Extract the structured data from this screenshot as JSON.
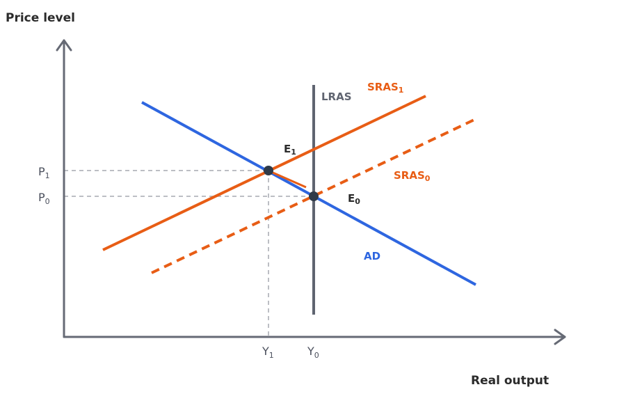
{
  "diagram": {
    "y_axis_title": "Price level",
    "x_axis_title": "Real output",
    "ticks": {
      "p1": {
        "base": "P",
        "sub": "1"
      },
      "p0": {
        "base": "P",
        "sub": "0"
      },
      "y1": {
        "base": "Y",
        "sub": "1"
      },
      "y0": {
        "base": "Y",
        "sub": "0"
      }
    },
    "curves": {
      "lras": "LRAS",
      "sras1": {
        "base": "SRAS",
        "sub": "1"
      },
      "sras0": {
        "base": "SRAS",
        "sub": "0"
      },
      "ad": "AD"
    },
    "points": {
      "e1": {
        "base": "E",
        "sub": "1"
      },
      "e0": {
        "base": "E",
        "sub": "0"
      }
    },
    "colors": {
      "axis": "#666a75",
      "orange": "#e85d15",
      "blue": "#2e66e0",
      "lras": "#5f6470",
      "guide": "#a6a9b0",
      "point": "#2f3a48"
    }
  }
}
